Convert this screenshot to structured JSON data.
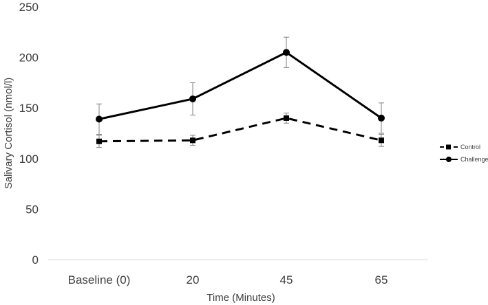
{
  "chart_data": {
    "type": "line",
    "title": "",
    "xlabel": "Time (Minutes)",
    "ylabel": "Salivary Cortisol (nmol/l)",
    "categories": [
      "Baseline (0)",
      "20",
      "45",
      "65"
    ],
    "ylim": [
      0,
      250
    ],
    "yticks": [
      0,
      50,
      100,
      150,
      200,
      250
    ],
    "grid": false,
    "legend_position": "right",
    "series": [
      {
        "name": "Control",
        "line_style": "dashed",
        "marker": "square",
        "color": "#000000",
        "values": [
          117,
          118,
          140,
          118
        ],
        "errors": [
          6,
          5,
          5,
          6
        ]
      },
      {
        "name": "Challenge",
        "line_style": "solid",
        "marker": "circle",
        "color": "#000000",
        "values": [
          139,
          159,
          205,
          140
        ],
        "errors": [
          15,
          16,
          15,
          15
        ]
      }
    ]
  }
}
